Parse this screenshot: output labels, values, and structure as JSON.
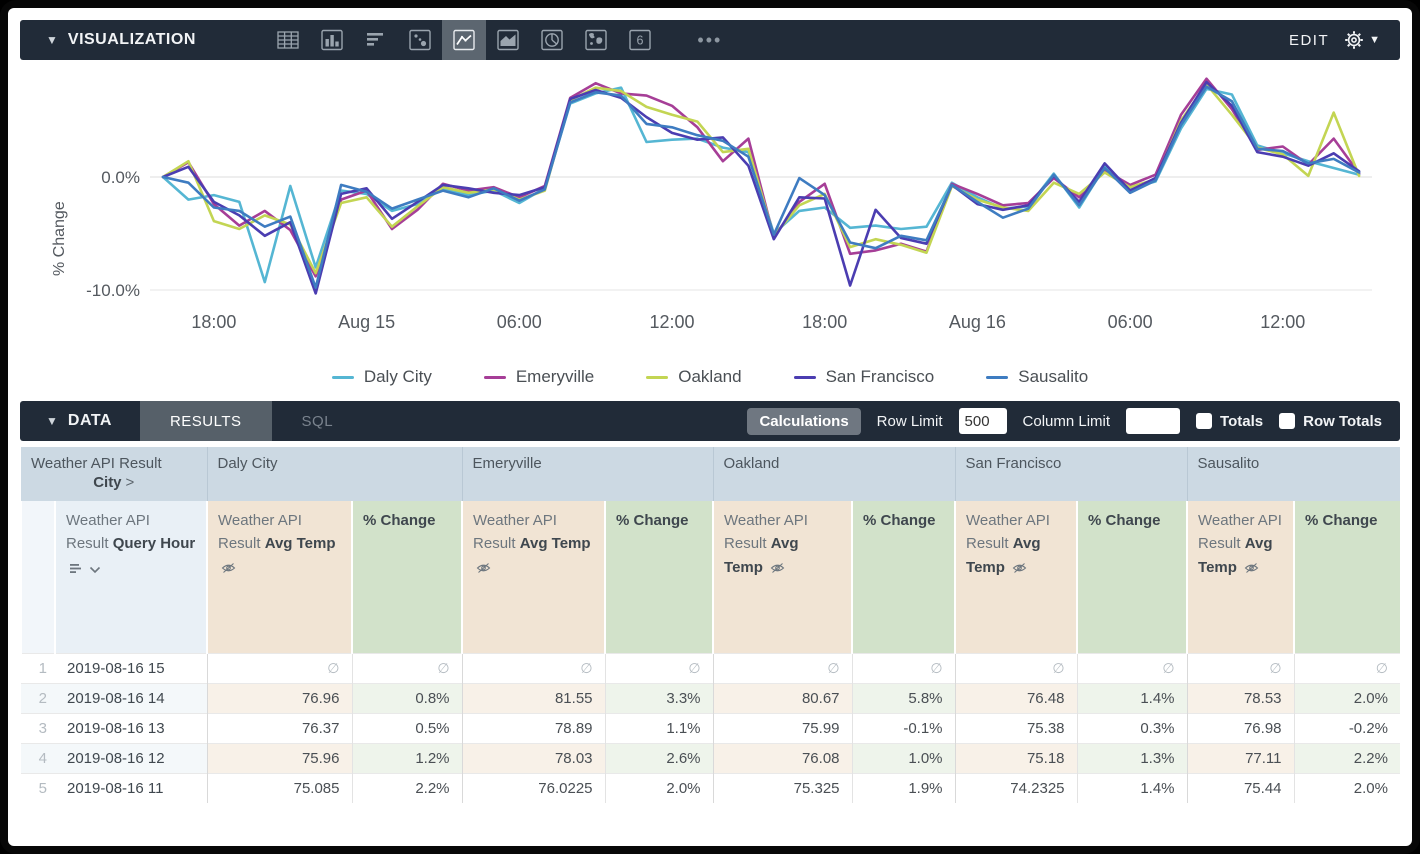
{
  "viz_toolbar": {
    "title": "VISUALIZATION",
    "edit_label": "EDIT",
    "icons": [
      "table-icon",
      "bar-chart-icon",
      "horizontal-bar-icon",
      "scatter-icon",
      "line-chart-icon",
      "area-chart-icon",
      "pie-chart-icon",
      "map-icon",
      "single-value-icon"
    ],
    "active_icon": "line-chart-icon",
    "more_label": "•••"
  },
  "chart_data": {
    "type": "line",
    "ylabel": "% Change",
    "yticks": [
      {
        "label": "0.0%",
        "value": 0
      },
      {
        "label": "-10.0%",
        "value": -10
      }
    ],
    "ylim": [
      -11,
      9.5
    ],
    "grid": true,
    "legend_position": "bottom",
    "x_tick_positions": [
      2,
      8,
      14,
      20,
      26,
      32,
      38,
      44
    ],
    "x_tick_labels": [
      "18:00",
      "Aug 15",
      "06:00",
      "12:00",
      "18:00",
      "Aug 16",
      "06:00",
      "12:00"
    ],
    "series": [
      {
        "name": "Daly City",
        "color": "#55b6d3",
        "values": [
          0,
          -2.0,
          -1.6,
          -2.2,
          -9.3,
          -0.8,
          -8.0,
          -1.2,
          -1.5,
          -3.0,
          -2.4,
          -1.0,
          -1.6,
          -1.2,
          -2.3,
          -1.0,
          6.5,
          7.4,
          7.9,
          3.1,
          3.3,
          3.4,
          2.6,
          2.2,
          -5.0,
          -3.0,
          -2.7,
          -4.5,
          -4.3,
          -4.6,
          -4.4,
          -0.5,
          -1.8,
          -2.8,
          -2.6,
          0.3,
          -2.7,
          0.9,
          -1.0,
          -0.4,
          4.3,
          7.8,
          7.3,
          2.8,
          2.1,
          1.4,
          0.8,
          0.2
        ]
      },
      {
        "name": "Emeryville",
        "color": "#a63e97",
        "values": [
          0,
          1.3,
          -2.4,
          -4.3,
          -3.0,
          -4.7,
          -8.8,
          -2.0,
          -1.2,
          -4.6,
          -2.9,
          -0.6,
          -1.2,
          -0.9,
          -1.8,
          -0.8,
          7.0,
          8.3,
          7.4,
          7.2,
          6.3,
          4.4,
          1.4,
          3.4,
          -5.3,
          -2.2,
          -0.6,
          -6.8,
          -6.5,
          -5.9,
          -6.6,
          -0.6,
          -1.5,
          -2.5,
          -2.3,
          -0.1,
          -1.8,
          0.6,
          -0.7,
          0.2,
          5.5,
          8.7,
          6.0,
          2.4,
          2.7,
          1.1,
          3.4,
          0.3
        ]
      },
      {
        "name": "Oakland",
        "color": "#c3d553",
        "values": [
          0,
          1.4,
          -3.9,
          -4.6,
          -3.4,
          -4.2,
          -8.5,
          -2.3,
          -1.8,
          -4.4,
          -2.6,
          -0.9,
          -1.4,
          -1.1,
          -2.0,
          -1.2,
          6.8,
          7.9,
          7.6,
          6.2,
          5.5,
          4.9,
          2.2,
          2.5,
          -5.2,
          -2.5,
          -1.5,
          -6.2,
          -5.5,
          -6.0,
          -6.7,
          -0.8,
          -2.0,
          -2.7,
          -3.0,
          -0.5,
          -1.5,
          0.4,
          -0.9,
          -0.2,
          5.0,
          8.2,
          5.5,
          2.6,
          2.0,
          0.1,
          5.7,
          0.1
        ]
      },
      {
        "name": "San Francisco",
        "color": "#4b3db1",
        "values": [
          0,
          0.9,
          -2.2,
          -3.4,
          -5.2,
          -4.0,
          -10.3,
          -1.5,
          -1.0,
          -3.7,
          -2.2,
          -0.7,
          -1.0,
          -1.4,
          -1.6,
          -0.9,
          6.9,
          7.7,
          7.0,
          5.3,
          3.9,
          3.3,
          3.5,
          1.0,
          -5.5,
          -1.8,
          -1.9,
          -9.6,
          -2.9,
          -5.4,
          -5.9,
          -0.7,
          -2.4,
          -2.9,
          -2.5,
          0.1,
          -2.2,
          1.2,
          -1.2,
          -0.1,
          4.8,
          8.4,
          6.3,
          2.2,
          1.8,
          1.0,
          2.1,
          0.5
        ]
      },
      {
        "name": "Sausalito",
        "color": "#3e7cc1",
        "values": [
          0,
          -0.5,
          -2.7,
          -3.0,
          -4.4,
          -3.5,
          -9.8,
          -0.7,
          -1.3,
          -2.8,
          -2.0,
          -1.2,
          -1.8,
          -1.0,
          -2.1,
          -1.1,
          6.6,
          7.5,
          7.2,
          4.7,
          4.4,
          3.7,
          3.2,
          1.8,
          -5.1,
          -0.1,
          -1.6,
          -5.8,
          -6.3,
          -5.2,
          -5.6,
          -0.7,
          -2.2,
          -3.6,
          -2.8,
          0.2,
          -2.5,
          0.8,
          -1.4,
          -0.3,
          4.6,
          8.0,
          6.7,
          2.5,
          2.3,
          1.2,
          1.6,
          0.4
        ]
      }
    ]
  },
  "data_toolbar": {
    "title": "DATA",
    "tabs": [
      {
        "label": "RESULTS",
        "active": true
      },
      {
        "label": "SQL",
        "active": false
      }
    ],
    "calculations_label": "Calculations",
    "row_limit_label": "Row Limit",
    "row_limit_value": "500",
    "column_limit_label": "Column Limit",
    "column_limit_value": "",
    "totals_label": "Totals",
    "totals_checked": false,
    "row_totals_label": "Row Totals",
    "row_totals_checked": false
  },
  "table": {
    "pivot_dimension": {
      "line1": "Weather API Result",
      "line2": "City",
      "chevron": ">"
    },
    "row_dimension": {
      "prefix": "Weather API Result ",
      "bold": "Query Hour"
    },
    "measure_header": {
      "prefix": "Weather API Result ",
      "bold": "Avg Temp"
    },
    "pct_header": {
      "bold": "% Change"
    },
    "cities": [
      "Daly City",
      "Emeryville",
      "Oakland",
      "San Francisco",
      "Sausalito"
    ],
    "null_symbol": "∅",
    "rows": [
      {
        "num": "1",
        "hour": "2019-08-16 15",
        "values": [
          null,
          null,
          null,
          null,
          null,
          null,
          null,
          null,
          null,
          null
        ]
      },
      {
        "num": "2",
        "hour": "2019-08-16 14",
        "values": [
          "76.96",
          "0.8%",
          "81.55",
          "3.3%",
          "80.67",
          "5.8%",
          "76.48",
          "1.4%",
          "78.53",
          "2.0%"
        ]
      },
      {
        "num": "3",
        "hour": "2019-08-16 13",
        "values": [
          "76.37",
          "0.5%",
          "78.89",
          "1.1%",
          "75.99",
          "-0.1%",
          "75.38",
          "0.3%",
          "76.98",
          "-0.2%"
        ]
      },
      {
        "num": "4",
        "hour": "2019-08-16 12",
        "values": [
          "75.96",
          "1.2%",
          "78.03",
          "2.6%",
          "76.08",
          "1.0%",
          "75.18",
          "1.3%",
          "77.11",
          "2.2%"
        ]
      },
      {
        "num": "5",
        "hour": "2019-08-16 11",
        "values": [
          "75.085",
          "2.2%",
          "76.0225",
          "2.0%",
          "75.325",
          "1.9%",
          "74.2325",
          "1.4%",
          "75.44",
          "2.0%"
        ]
      }
    ]
  },
  "colors": {
    "toolbar_bg": "#212b38",
    "active_icon_bg": "#5c6670",
    "city_header_bg": "#ccd9e3",
    "hour_header_bg": "#e9f0f6",
    "temp_header_bg": "#f1e4d4",
    "pct_header_bg": "#d2e2ca"
  }
}
